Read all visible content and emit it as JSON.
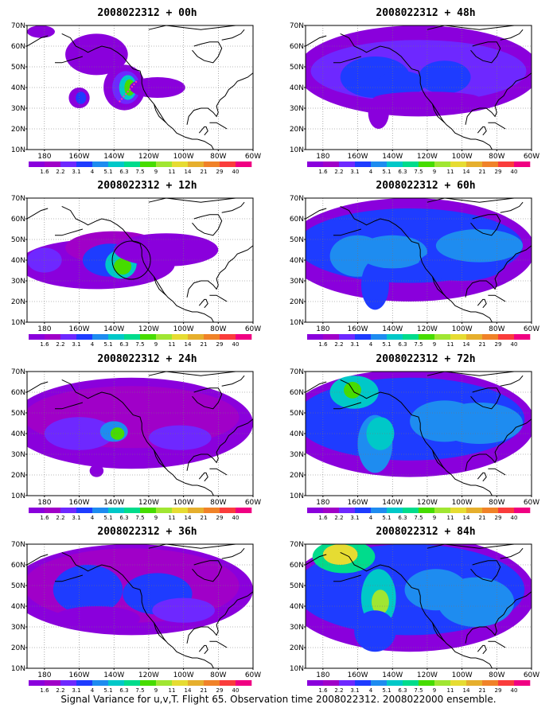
{
  "panels": [
    {
      "title": "2008022312 + 00h",
      "lead_hours": 0
    },
    {
      "title": "2008022312 + 48h",
      "lead_hours": 48
    },
    {
      "title": "2008022312 + 12h",
      "lead_hours": 12
    },
    {
      "title": "2008022312 + 60h",
      "lead_hours": 60
    },
    {
      "title": "2008022312 + 24h",
      "lead_hours": 24
    },
    {
      "title": "2008022312 + 72h",
      "lead_hours": 72
    },
    {
      "title": "2008022312 + 36h",
      "lead_hours": 36
    },
    {
      "title": "2008022312 + 84h",
      "lead_hours": 84
    }
  ],
  "lat_labels": [
    "70N",
    "60N",
    "50N",
    "40N",
    "30N",
    "20N",
    "10N"
  ],
  "lon_labels": [
    "180",
    "160W",
    "140W",
    "120W",
    "100W",
    "80W",
    "60W"
  ],
  "colorbar": {
    "levels": [
      "1.6",
      "2.2",
      "3.1",
      "4",
      "5.1",
      "6.3",
      "7.5",
      "9",
      "11",
      "14",
      "21",
      "29",
      "40"
    ],
    "colors": [
      "#8a00dc",
      "#a000c8",
      "#6e28ff",
      "#1e3cff",
      "#1e8cf0",
      "#00c8c8",
      "#00dc8c",
      "#46dc00",
      "#a0e632",
      "#e6dc32",
      "#e6af2d",
      "#f08228",
      "#fa3c3c",
      "#f00082"
    ]
  },
  "caption": "Signal Variance for u,v,T. Flight 65. Observation time 2008022312. 2008022000 ensemble."
}
